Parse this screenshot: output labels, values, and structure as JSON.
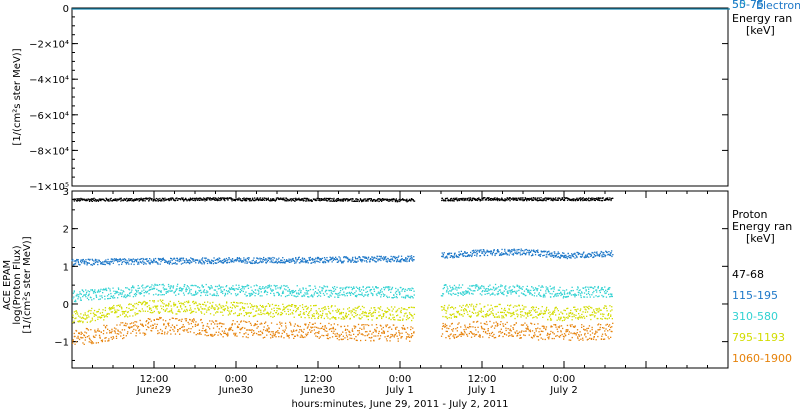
{
  "chart_data": [
    {
      "type": "line",
      "panel": "top",
      "ylabel_lines": [
        "",
        "[1/(cm²s ster MeV)]"
      ],
      "ylim": [
        -100000,
        0
      ],
      "yticks": [
        {
          "value": 0,
          "label": "0"
        },
        {
          "value": -20000,
          "label": "−2×10⁴"
        },
        {
          "value": -40000,
          "label": "−4×10⁴"
        },
        {
          "value": -60000,
          "label": "−6×10⁴"
        },
        {
          "value": -80000,
          "label": "−8×10⁴"
        },
        {
          "value": -100000,
          "label": "−1×10⁵"
        }
      ],
      "series": [
        {
          "name": "",
          "color": "#1e8bb4",
          "x": [
            0,
            3.9
          ],
          "y": [
            0,
            0
          ]
        }
      ],
      "legend": {
        "placement": "right",
        "overlapping_labels": [
          "50-75",
          "55-75",
          "Electron"
        ],
        "title_lines": [
          "Energy ran",
          "[keV]"
        ],
        "colors": {
          "primary": "#1e78c8",
          "secondary": "#2ab4c8"
        }
      }
    },
    {
      "type": "scatter",
      "panel": "bottom",
      "ylabel_lines": [
        "ACE EPAM",
        "log(Proton Flux)",
        "[1/(cm²s ster MeV)]"
      ],
      "ylim": [
        -1.7,
        3.0
      ],
      "yticks": [
        {
          "value": 3,
          "label": "3"
        },
        {
          "value": 2,
          "label": "2"
        },
        {
          "value": 1,
          "label": "1"
        },
        {
          "value": 0,
          "label": "0"
        },
        {
          "value": -1,
          "label": "−1"
        }
      ],
      "xlim": [
        "2011-06-29 00:00",
        "2011-07-03 00:00"
      ],
      "xticks": [
        {
          "x": "2011-06-29 12:00",
          "time": "12:00",
          "date": "June29"
        },
        {
          "x": "2011-06-30 00:00",
          "time": "0:00",
          "date": "June30"
        },
        {
          "x": "2011-06-30 12:00",
          "time": "12:00",
          "date": "June30"
        },
        {
          "x": "2011-07-01 00:00",
          "time": "0:00",
          "date": "July 1"
        },
        {
          "x": "2011-07-01 12:00",
          "time": "12:00",
          "date": "July 1"
        },
        {
          "x": "2011-07-02 00:00",
          "time": "0:00",
          "date": "July 2"
        }
      ],
      "xlabel": "hours:minutes, June 29, 2011 - July  2, 2011",
      "data_gap": [
        "2011-07-01 02:00",
        "2011-07-01 06:00"
      ],
      "data_end": "2011-07-02 07:00",
      "legend": {
        "placement": "right",
        "title_lines": [
          "Proton",
          "Energy ran",
          "[keV]"
        ]
      },
      "series": [
        {
          "name": "47-68",
          "color": "#000000",
          "profile": [
            [
              "2011-06-29 00:00",
              2.78
            ],
            [
              "2011-06-30 00:00",
              2.8
            ],
            [
              "2011-07-01 00:00",
              2.77
            ],
            [
              "2011-07-01 12:00",
              2.8
            ],
            [
              "2011-07-02 07:00",
              2.8
            ]
          ],
          "spread": 0.04
        },
        {
          "name": "115-195",
          "color": "#1e78c8",
          "profile": [
            [
              "2011-06-29 00:00",
              1.12
            ],
            [
              "2011-06-29 12:00",
              1.15
            ],
            [
              "2011-06-30 00:00",
              1.17
            ],
            [
              "2011-06-30 12:00",
              1.18
            ],
            [
              "2011-07-01 02:00",
              1.22
            ],
            [
              "2011-07-01 06:00",
              1.3
            ],
            [
              "2011-07-01 12:00",
              1.38
            ],
            [
              "2011-07-01 18:00",
              1.4
            ],
            [
              "2011-07-02 00:00",
              1.3
            ],
            [
              "2011-07-02 07:00",
              1.35
            ]
          ],
          "spread": 0.08
        },
        {
          "name": "310-580",
          "color": "#32d2d2",
          "profile": [
            [
              "2011-06-29 00:00",
              0.22
            ],
            [
              "2011-06-29 12:00",
              0.4
            ],
            [
              "2011-06-30 00:00",
              0.38
            ],
            [
              "2011-06-30 12:00",
              0.35
            ],
            [
              "2011-07-01 02:00",
              0.32
            ],
            [
              "2011-07-01 06:00",
              0.38
            ],
            [
              "2011-07-01 12:00",
              0.4
            ],
            [
              "2011-07-02 00:00",
              0.33
            ],
            [
              "2011-07-02 07:00",
              0.35
            ]
          ],
          "spread": 0.15
        },
        {
          "name": "795-1193",
          "color": "#d2dc00",
          "profile": [
            [
              "2011-06-29 00:00",
              -0.35
            ],
            [
              "2011-06-29 12:00",
              -0.05
            ],
            [
              "2011-06-30 00:00",
              -0.12
            ],
            [
              "2011-06-30 12:00",
              -0.2
            ],
            [
              "2011-07-01 02:00",
              -0.25
            ],
            [
              "2011-07-01 06:00",
              -0.2
            ],
            [
              "2011-07-01 12:00",
              -0.15
            ],
            [
              "2011-07-02 00:00",
              -0.25
            ],
            [
              "2011-07-02 07:00",
              -0.2
            ]
          ],
          "spread": 0.18
        },
        {
          "name": "1060-1900",
          "color": "#e6820a",
          "profile": [
            [
              "2011-06-29 00:00",
              -0.9
            ],
            [
              "2011-06-29 12:00",
              -0.55
            ],
            [
              "2011-06-30 00:00",
              -0.65
            ],
            [
              "2011-06-30 12:00",
              -0.7
            ],
            [
              "2011-07-01 02:00",
              -0.78
            ],
            [
              "2011-07-01 06:00",
              -0.7
            ],
            [
              "2011-07-01 12:00",
              -0.65
            ],
            [
              "2011-07-02 00:00",
              -0.75
            ],
            [
              "2011-07-02 07:00",
              -0.7
            ]
          ],
          "spread": 0.22
        }
      ]
    }
  ]
}
